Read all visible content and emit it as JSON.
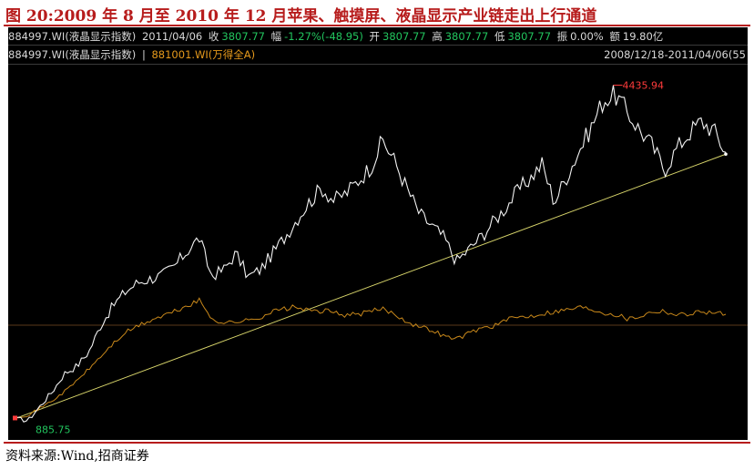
{
  "figure_title": "图 20:2009 年 8 月至 2010 年 12 月苹果、触摸屏、液晶显示产业链走出上行通道",
  "source": "资料来源:Wind,招商证券",
  "header1": {
    "code": "884997.WI(液晶显示指数)",
    "date": "2011/04/06",
    "close_label": "收",
    "close_value": "3807.77",
    "change_label": "幅",
    "change_value": "-1.27%(-48.95)",
    "open_label": "开",
    "open_value": "3807.77",
    "high_label": "高",
    "high_value": "3807.77",
    "low_label": "低",
    "low_value": "3807.77",
    "amp_label": "振",
    "amp_value": "0.00%",
    "vol_label": "额",
    "vol_value": "19.80亿"
  },
  "header2": {
    "series1": "884997.WI(液晶显示指数)",
    "divider": "|",
    "series2": "881001.WI(万得全A)",
    "range": "2008/12/18-2011/04/06(55"
  },
  "colors": {
    "background": "#000000",
    "index_line": "#f2f2f2",
    "benchmark_line": "#c7871a",
    "channel_line": "#d7d46a",
    "high_label": "#ff3b3b",
    "low_label": "#22c55e",
    "title_red": "#b71c1c"
  },
  "chart_data": {
    "type": "line",
    "title": "",
    "x_range": [
      "2008/12/18",
      "2011/04/06"
    ],
    "ylim": [
      700,
      4700
    ],
    "annotations": {
      "high": {
        "label": "4435.94",
        "value": 4435.94
      },
      "low": {
        "label": "885.75",
        "value": 885.75
      }
    },
    "trend_line": {
      "name": "",
      "start_value": 885.75,
      "end_value": 3807.77
    },
    "series": [
      {
        "name": "884997.WI(液晶显示指数)",
        "values": [
          885.75,
          860,
          1020,
          1180,
          1380,
          1460,
          1620,
          1920,
          2130,
          2280,
          2380,
          2420,
          2460,
          2560,
          2720,
          2870,
          2450,
          2520,
          2700,
          2440,
          2520,
          2700,
          2880,
          3080,
          3260,
          3420,
          3280,
          3360,
          3500,
          3650,
          3940,
          3700,
          3400,
          3130,
          3000,
          2870,
          2610,
          2740,
          2880,
          3040,
          3200,
          3380,
          3520,
          3680,
          3260,
          3540,
          3820,
          4080,
          4380,
          4435.94,
          4240,
          4050,
          3880,
          3620,
          3850,
          4020,
          4150,
          4050,
          3807.77
        ]
      },
      {
        "name": "881001.WI(万得全A)",
        "values": [
          900,
          920,
          1000,
          1080,
          1180,
          1300,
          1430,
          1570,
          1710,
          1830,
          1900,
          1960,
          2010,
          2060,
          2120,
          2180,
          1990,
          1930,
          1950,
          1960,
          2000,
          2060,
          2090,
          2110,
          2060,
          2070,
          2050,
          2020,
          2030,
          2060,
          2090,
          2030,
          1950,
          1890,
          1860,
          1790,
          1760,
          1820,
          1880,
          1900,
          1960,
          2000,
          2010,
          2040,
          2060,
          2080,
          2110,
          2090,
          2050,
          2030,
          1980,
          2010,
          2060,
          2070,
          2020,
          2040,
          2060,
          2050,
          2030
        ]
      }
    ]
  }
}
